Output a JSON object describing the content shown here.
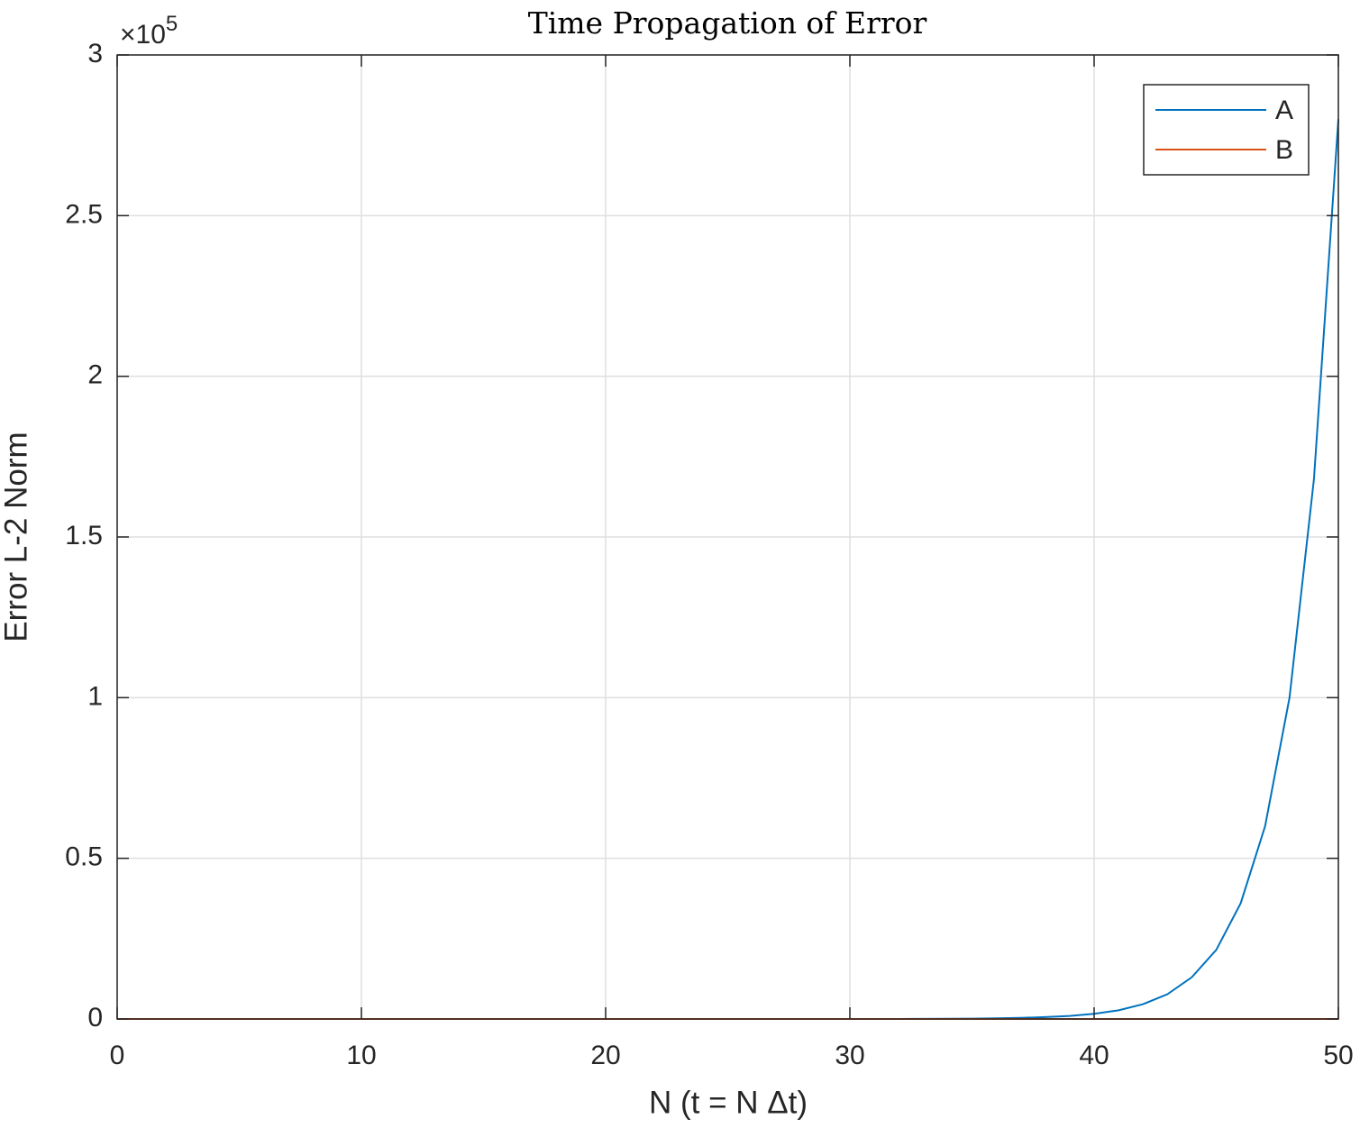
{
  "chart_data": {
    "type": "line",
    "title": "Time Propagation of Error",
    "x_label": "N (t = N Δt)",
    "y_label": "Error L-2 Norm",
    "y_exponent_base": "×10",
    "y_exponent": "5",
    "x": [
      0,
      1,
      2,
      3,
      4,
      5,
      6,
      7,
      8,
      9,
      10,
      11,
      12,
      13,
      14,
      15,
      16,
      17,
      18,
      19,
      20,
      21,
      22,
      23,
      24,
      25,
      26,
      27,
      28,
      29,
      30,
      31,
      32,
      33,
      34,
      35,
      36,
      37,
      38,
      39,
      40,
      41,
      42,
      43,
      44,
      45,
      46,
      47,
      48,
      49,
      50
    ],
    "series": [
      {
        "name": "A",
        "color": "#0072bd",
        "values": [
          0,
          0,
          0,
          0,
          0,
          0,
          0,
          0,
          0,
          0,
          0,
          0,
          0,
          0,
          0,
          0,
          0,
          0,
          0,
          0,
          0,
          0,
          0,
          0,
          0,
          0,
          0,
          0,
          0,
          0,
          0,
          0,
          0,
          0.0004,
          0.0007,
          0.0012,
          0.002,
          0.0035,
          0.0058,
          0.0096,
          0.016,
          0.027,
          0.046,
          0.077,
          0.13,
          0.215,
          0.36,
          0.6,
          1.0,
          1.68,
          2.8
        ]
      },
      {
        "name": "B",
        "color": "#d95319",
        "values": [
          0,
          0,
          0,
          0,
          0,
          0,
          0,
          0,
          0,
          0,
          0,
          0,
          0,
          0,
          0,
          0,
          0,
          0,
          0,
          0,
          0,
          0,
          0,
          0,
          0,
          0,
          0,
          0,
          0,
          0,
          0,
          0,
          0,
          0,
          0,
          0,
          0,
          0,
          0,
          0,
          0,
          0,
          0,
          0,
          0,
          0,
          0,
          0,
          0,
          0,
          0
        ]
      }
    ],
    "xlim": [
      0,
      50
    ],
    "xticks": [
      0,
      10,
      20,
      30,
      40,
      50
    ],
    "ylim": [
      0,
      3
    ],
    "yticks": [
      0,
      0.5,
      1,
      1.5,
      2,
      2.5,
      3
    ],
    "grid": true,
    "legend": "northeast"
  }
}
